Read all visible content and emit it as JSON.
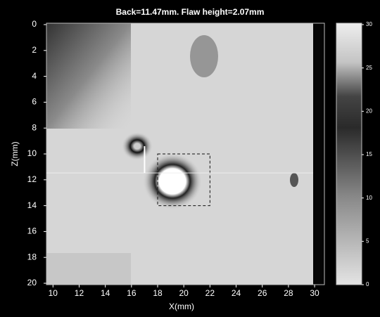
{
  "chart_data": {
    "type": "image",
    "title": "Back=11.47mm. Flaw height=2.07mm",
    "xlabel": "X(mm)",
    "ylabel": "Z(mm)",
    "xlim": [
      9.5,
      30.75
    ],
    "ylim": [
      0,
      20
    ],
    "y_inverted": true,
    "xticks": [
      10,
      12,
      14,
      16,
      18,
      20,
      22,
      24,
      26,
      28,
      30
    ],
    "yticks": [
      0,
      2,
      4,
      6,
      8,
      10,
      12,
      14,
      16,
      18,
      20
    ],
    "colorbar": {
      "lim": [
        0,
        30
      ],
      "ticks": [
        0,
        5,
        10,
        15,
        20,
        25,
        30
      ]
    },
    "boxes": [
      {
        "x": [
          18,
          22
        ],
        "y": [
          10,
          14
        ]
      }
    ],
    "indicator": {
      "x": 17,
      "y": [
        9.4,
        11.47
      ]
    }
  }
}
